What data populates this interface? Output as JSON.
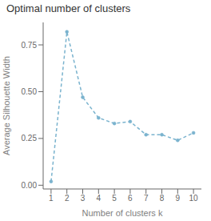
{
  "chart_data": {
    "type": "line",
    "title": "Optimal number of clusters",
    "xlabel": "Number of clusters k",
    "ylabel": "Average Silhouette Width",
    "x": [
      1,
      2,
      3,
      4,
      5,
      6,
      7,
      8,
      9,
      10
    ],
    "values": [
      0.02,
      0.82,
      0.47,
      0.36,
      0.33,
      0.34,
      0.27,
      0.27,
      0.24,
      0.28
    ],
    "xlim": [
      0.5,
      10.5
    ],
    "xticks": [
      1,
      2,
      3,
      4,
      5,
      6,
      7,
      8,
      9,
      10
    ],
    "ylim": [
      -0.02,
      0.87
    ],
    "yticks": [
      {
        "value": 0.0,
        "label": "0.00"
      },
      {
        "value": 0.25,
        "label": "0.25"
      },
      {
        "value": 0.5,
        "label": "0.50"
      },
      {
        "value": 0.75,
        "label": "0.75"
      }
    ],
    "color": "#7ab3ce",
    "marker": "o",
    "line_style": "--",
    "grid": false
  }
}
